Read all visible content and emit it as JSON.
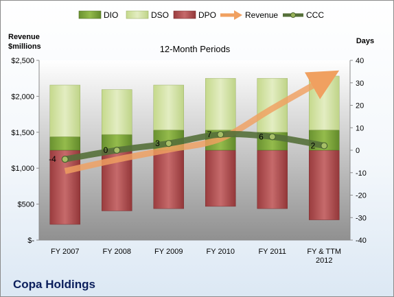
{
  "chart_data": {
    "type": "bar",
    "title": "12-Month Periods",
    "company": "Copa Holdings",
    "left_axis_title": [
      "Revenue",
      "$millions"
    ],
    "right_axis_title": "Days",
    "categories": [
      "FY 2007",
      "FY 2008",
      "FY 2009",
      "FY 2010",
      "FY 2011",
      "FY & TTM 2012"
    ],
    "left_axis": {
      "min": 0,
      "max": 2500,
      "step": 500,
      "tick_labels": [
        "$-",
        "$500",
        "$1,000",
        "$1,500",
        "$2,000",
        "$2,500"
      ]
    },
    "right_axis": {
      "min": -40,
      "max": 40,
      "step": 10,
      "tick_labels": [
        "-40",
        "-30",
        "-20",
        "-10",
        "0",
        "10",
        "20",
        "30",
        "40"
      ]
    },
    "legend": [
      "DIO",
      "DSO",
      "DPO",
      "Revenue",
      "CCC"
    ],
    "legend_position": "top",
    "grid": false,
    "series": [
      {
        "name": "DPO",
        "kind": "bar-segment",
        "axis": "right",
        "values": [
          33,
          27,
          26,
          25,
          26,
          31
        ]
      },
      {
        "name": "DIO",
        "kind": "bar-segment",
        "axis": "right",
        "values": [
          6,
          7,
          9,
          9,
          8,
          9
        ]
      },
      {
        "name": "DSO",
        "kind": "bar-segment",
        "axis": "right",
        "values": [
          23,
          20,
          20,
          23,
          24,
          24
        ]
      },
      {
        "name": "Revenue",
        "kind": "line",
        "axis": "left",
        "values": [
          960,
          1120,
          1260,
          1410,
          1830,
          2240
        ]
      },
      {
        "name": "CCC",
        "kind": "line",
        "axis": "right",
        "values": [
          -4,
          0,
          3,
          7,
          6,
          2
        ],
        "data_labels": [
          "-4",
          "0",
          "3",
          "7",
          "6",
          "2"
        ]
      }
    ],
    "colors": {
      "DIO": "#7da33a",
      "DSO": "#d4e3a6",
      "DPO": "#b04a4b",
      "Revenue": "#f0a060",
      "CCC": "#55703a"
    }
  }
}
